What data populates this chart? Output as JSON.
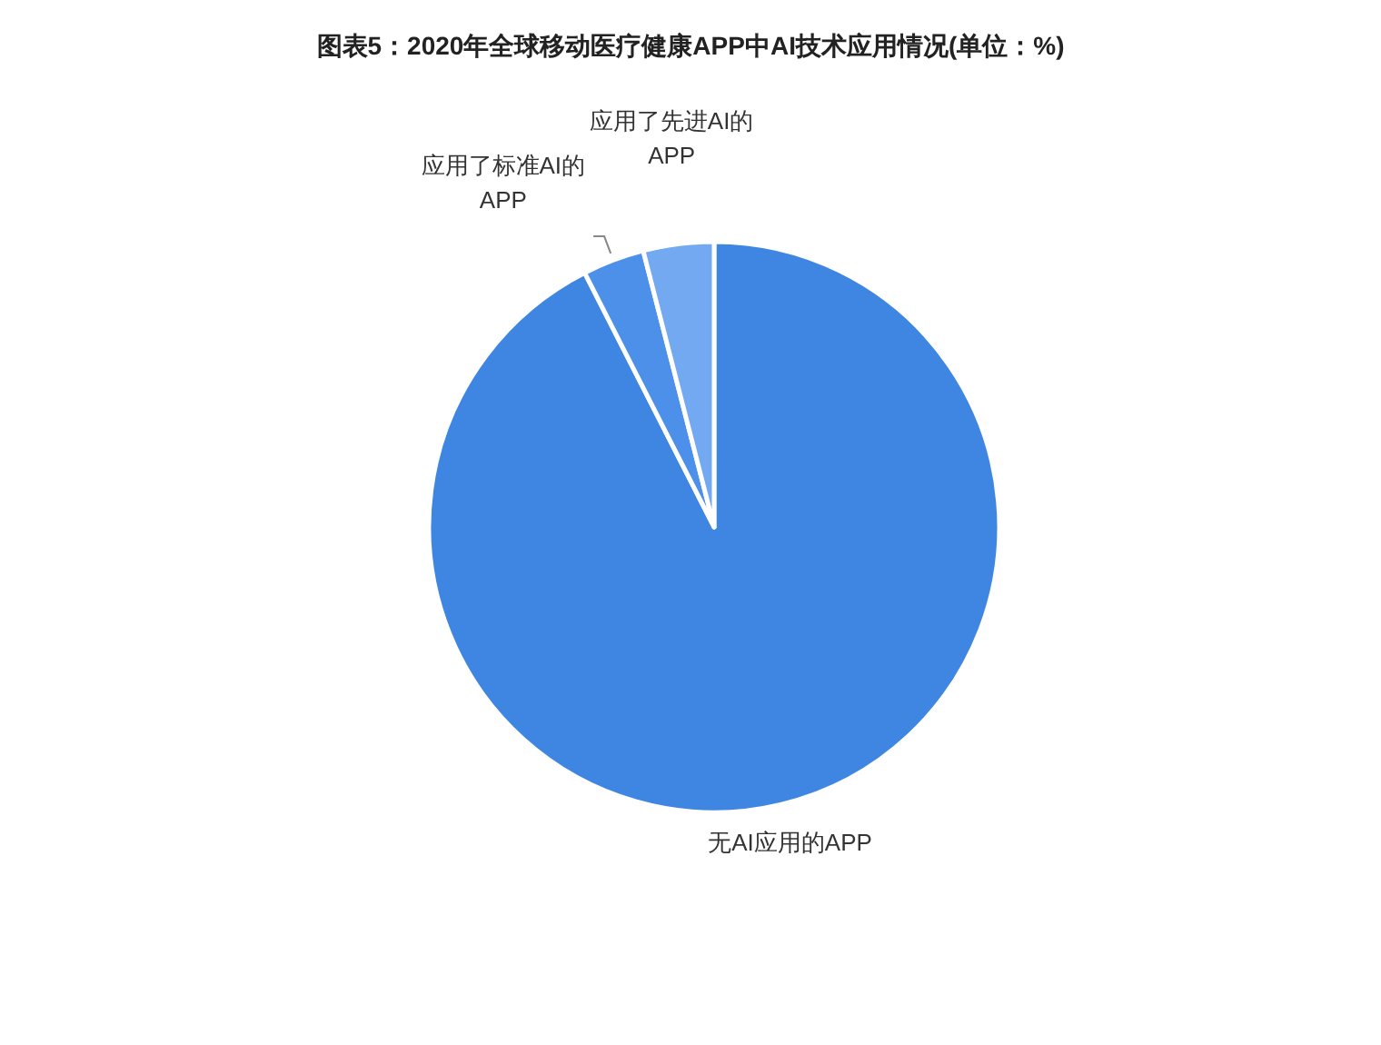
{
  "chart_data": {
    "type": "pie",
    "title": "图表5：2020年全球移动医疗健康APP中AI技术应用情况(单位：%)",
    "categories": [
      "无AI应用的APP",
      "应用了标准AI的APP",
      "应用了先进AI的APP"
    ],
    "values": [
      92.5,
      3.5,
      4
    ],
    "colors": [
      "#3f86e2",
      "#4c90ea",
      "#72a9f0"
    ],
    "legend": false
  }
}
